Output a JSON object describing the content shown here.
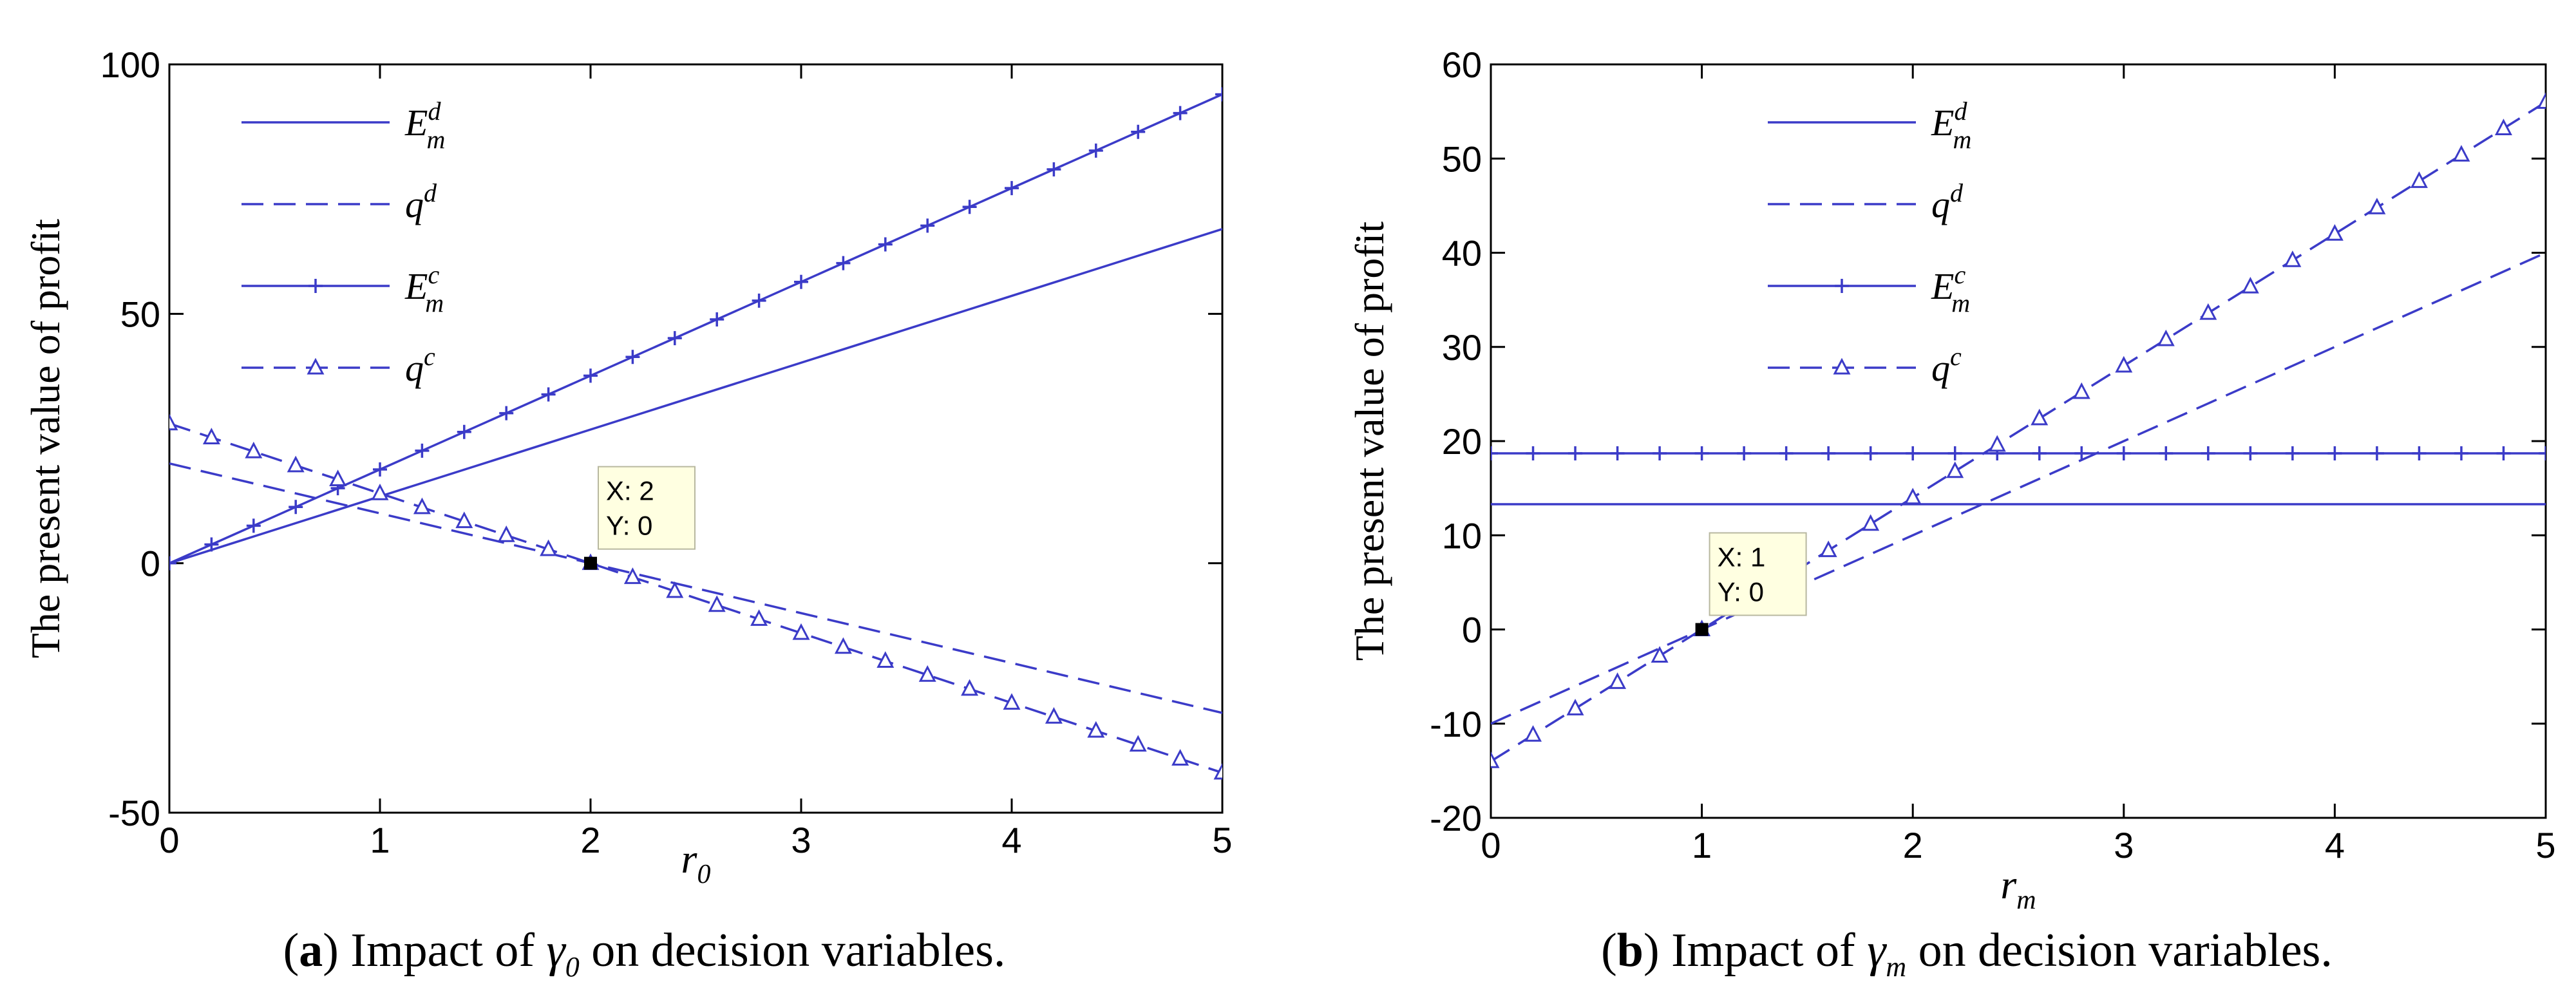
{
  "chart_data": [
    {
      "type": "line",
      "panel": "a",
      "ylabel": "The present value of profit",
      "xlabel": "r0",
      "xlabel_main": "r",
      "xlabel_sub": "0",
      "xlim": [
        0,
        5
      ],
      "ylim": [
        -50,
        100
      ],
      "xticks": [
        0,
        1,
        2,
        3,
        4,
        5
      ],
      "yticks": [
        -50,
        0,
        50,
        100
      ],
      "ytick_labels": [
        "-50",
        "0",
        "50",
        "100"
      ],
      "xtick_labels": [
        "0",
        "1",
        "2",
        "3",
        "4",
        "5"
      ],
      "series": [
        {
          "name": "E_m^d",
          "base": "E",
          "sub": "m",
          "sup": "d",
          "style": "solid",
          "marker": "none",
          "x": [
            0,
            5
          ],
          "values": [
            0,
            67
          ]
        },
        {
          "name": "q^d",
          "base": "q",
          "sub": "",
          "sup": "d",
          "style": "dashed",
          "marker": "none",
          "x": [
            0,
            5
          ],
          "values": [
            20,
            -30
          ]
        },
        {
          "name": "E_m^c",
          "base": "E",
          "sub": "m",
          "sup": "c",
          "style": "solid",
          "marker": "plus",
          "x": [
            0,
            5
          ],
          "values": [
            0,
            94
          ]
        },
        {
          "name": "q^c",
          "base": "q",
          "sub": "",
          "sup": "c",
          "style": "dashed",
          "marker": "triangle",
          "x": [
            0,
            5
          ],
          "values": [
            28,
            -42
          ]
        }
      ],
      "datatip": {
        "x": 2,
        "y": 0,
        "line1": "X: 2",
        "line2": "Y: 0"
      },
      "caption": {
        "label": "a",
        "prefix": "Impact of",
        "symbol": "γ",
        "symbol_sub": "0",
        "suffix": "on decision variables."
      }
    },
    {
      "type": "line",
      "panel": "b",
      "ylabel": "The present value of profit",
      "xlabel": "rm",
      "xlabel_main": "r",
      "xlabel_sub": "m",
      "xlim": [
        0,
        5
      ],
      "ylim": [
        -20,
        60
      ],
      "xticks": [
        0,
        1,
        2,
        3,
        4,
        5
      ],
      "yticks": [
        -20,
        -10,
        0,
        10,
        20,
        30,
        40,
        50,
        60
      ],
      "ytick_labels": [
        "-20",
        "-10",
        "0",
        "10",
        "20",
        "30",
        "40",
        "50",
        "60"
      ],
      "xtick_labels": [
        "0",
        "1",
        "2",
        "3",
        "4",
        "5"
      ],
      "series": [
        {
          "name": "E_m^d",
          "base": "E",
          "sub": "m",
          "sup": "d",
          "style": "solid",
          "marker": "none",
          "x": [
            0,
            5
          ],
          "values": [
            13.3,
            13.3
          ]
        },
        {
          "name": "q^d",
          "base": "q",
          "sub": "",
          "sup": "d",
          "style": "dashed",
          "marker": "none",
          "x": [
            0,
            5
          ],
          "values": [
            -10,
            40
          ]
        },
        {
          "name": "E_m^c",
          "base": "E",
          "sub": "m",
          "sup": "c",
          "style": "solid",
          "marker": "plus",
          "x": [
            0,
            5
          ],
          "values": [
            18.7,
            18.7
          ]
        },
        {
          "name": "q^c",
          "base": "q",
          "sub": "",
          "sup": "c",
          "style": "dashed",
          "marker": "triangle",
          "x": [
            0,
            5
          ],
          "values": [
            -14,
            56
          ]
        }
      ],
      "datatip": {
        "x": 1,
        "y": 0,
        "line1": "X: 1",
        "line2": "Y: 0"
      },
      "caption": {
        "label": "b",
        "prefix": "Impact of",
        "symbol": "γ",
        "symbol_sub": "m",
        "suffix": "on decision variables."
      }
    }
  ],
  "colors": {
    "line": "#3b3bc8",
    "axis": "#000000",
    "datatip_bg": "#ffffe1",
    "datatip_border": "#b8b8a0",
    "marker_point": "#000000"
  }
}
